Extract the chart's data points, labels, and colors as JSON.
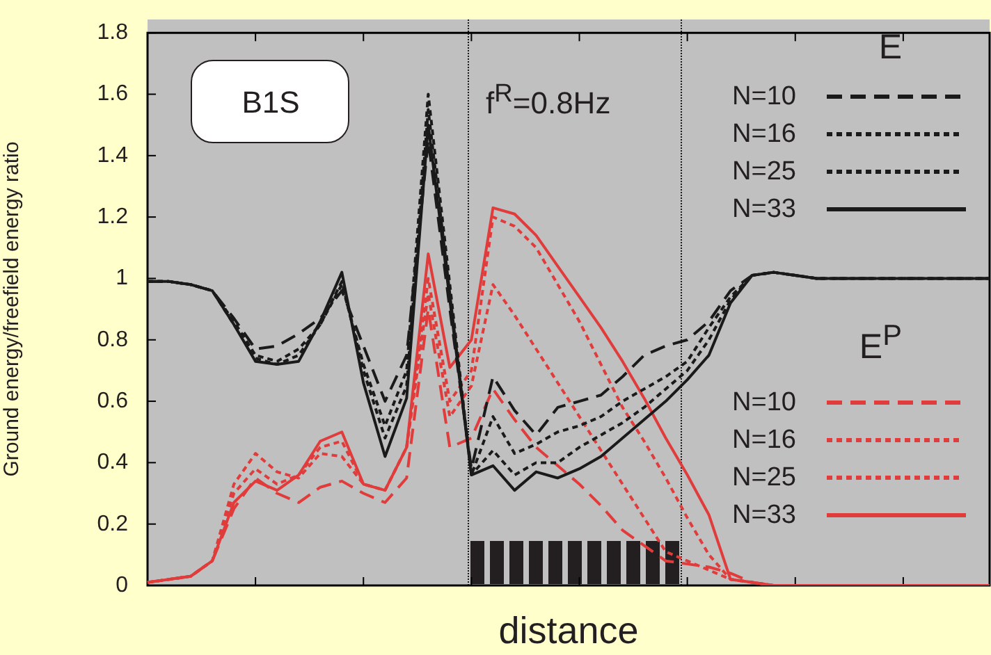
{
  "chart_data": {
    "type": "line",
    "xlabel": "distance",
    "ylabel": "Ground energy/freefield energy ratio",
    "annotations": [
      "B1S",
      "f$^{R}$=0.8Hz",
      "E",
      "E$^{P}$"
    ],
    "categories": [
      null,
      null,
      null,
      null,
      null,
      null,
      null,
      null,
      null,
      null,
      null,
      null,
      null,
      null,
      null,
      null,
      null,
      null,
      null,
      null,
      null,
      null,
      null,
      null,
      null,
      null,
      null,
      null,
      null,
      null,
      null,
      null,
      null,
      null,
      null,
      null,
      null,
      null,
      null,
      null
    ],
    "ylim": [
      0,
      1.8
    ],
    "yticks": [
      0,
      0.2,
      0.4,
      0.6,
      0.8,
      1,
      1.2,
      1.4,
      1.6,
      1.8
    ],
    "tick_labels": "y",
    "grid": false,
    "legend": "right",
    "marker": "none",
    "series": [
      {
        "name": "N=10",
        "color": "#1a1a1a",
        "line_style": "dashed",
        "values": [
          0.99,
          0.99,
          0.98,
          0.96,
          0.87,
          0.77,
          0.78,
          0.82,
          0.87,
          0.96,
          0.78,
          0.6,
          0.75,
          1.45,
          0.9,
          0.38,
          0.68,
          0.57,
          0.49,
          0.58,
          0.6,
          0.62,
          0.68,
          0.75,
          0.78,
          0.8,
          0.86,
          0.96,
          1.01,
          1.02,
          1.01,
          1.0,
          1.0,
          1.0,
          1.0,
          1.0,
          1.0,
          1.0,
          1.0,
          1.0
        ]
      },
      {
        "name": "N=16",
        "color": "#1a1a1a",
        "line_style": "dotted",
        "values": [
          0.99,
          0.99,
          0.98,
          0.96,
          0.86,
          0.75,
          0.73,
          0.77,
          0.85,
          0.98,
          0.72,
          0.52,
          0.7,
          1.6,
          0.98,
          0.36,
          0.55,
          0.43,
          0.46,
          0.5,
          0.52,
          0.55,
          0.6,
          0.64,
          0.68,
          0.73,
          0.84,
          0.94,
          1.01,
          1.02,
          1.01,
          1.0,
          1.0,
          1.0,
          1.0,
          1.0,
          1.0,
          1.0,
          1.0,
          1.0
        ]
      },
      {
        "name": "N=25",
        "color": "#1a1a1a",
        "line_style": "dotted",
        "values": [
          0.99,
          0.99,
          0.98,
          0.96,
          0.85,
          0.74,
          0.72,
          0.75,
          0.85,
          0.99,
          0.7,
          0.48,
          0.65,
          1.55,
          0.95,
          0.36,
          0.44,
          0.36,
          0.4,
          0.4,
          0.45,
          0.49,
          0.53,
          0.58,
          0.64,
          0.7,
          0.8,
          0.93,
          1.01,
          1.02,
          1.01,
          1.0,
          1.0,
          1.0,
          1.0,
          1.0,
          1.0,
          1.0,
          1.0,
          1.0
        ]
      },
      {
        "name": "N=33",
        "color": "#1a1a1a",
        "line_style": "solid",
        "values": [
          0.99,
          0.99,
          0.98,
          0.96,
          0.85,
          0.73,
          0.72,
          0.73,
          0.86,
          1.02,
          0.66,
          0.42,
          0.61,
          1.5,
          0.93,
          0.36,
          0.39,
          0.31,
          0.37,
          0.35,
          0.38,
          0.42,
          0.48,
          0.54,
          0.6,
          0.67,
          0.75,
          0.92,
          1.01,
          1.02,
          1.01,
          1.0,
          1.0,
          1.0,
          1.0,
          1.0,
          1.0,
          1.0,
          1.0,
          1.0
        ]
      },
      {
        "name": "N=10",
        "color": "#e03c3c",
        "line_style": "dashed",
        "values": [
          0.01,
          0.02,
          0.03,
          0.08,
          0.25,
          0.35,
          0.3,
          0.27,
          0.32,
          0.34,
          0.3,
          0.27,
          0.35,
          0.9,
          0.45,
          0.48,
          0.64,
          0.54,
          0.45,
          0.39,
          0.33,
          0.26,
          0.18,
          0.13,
          0.08,
          0.07,
          0.06,
          0.04,
          0.01,
          0,
          null,
          null,
          null,
          null,
          null,
          null,
          null,
          null,
          null,
          null
        ]
      },
      {
        "name": "N=16",
        "color": "#e03c3c",
        "line_style": "dotted",
        "values": [
          0.01,
          0.02,
          0.03,
          0.08,
          0.33,
          0.43,
          0.37,
          0.35,
          0.43,
          0.42,
          0.33,
          0.31,
          0.45,
          0.95,
          0.55,
          0.65,
          0.98,
          0.88,
          0.77,
          0.66,
          0.55,
          0.44,
          0.33,
          0.22,
          0.11,
          0.08,
          0.05,
          0.02,
          0.01,
          0,
          null,
          null,
          null,
          null,
          null,
          null,
          null,
          null,
          null,
          null
        ]
      },
      {
        "name": "N=25",
        "color": "#e03c3c",
        "line_style": "dotted",
        "values": [
          0.01,
          0.02,
          0.03,
          0.08,
          0.3,
          0.38,
          0.33,
          0.36,
          0.45,
          0.47,
          0.33,
          0.31,
          0.45,
          1.0,
          0.6,
          0.7,
          1.2,
          1.17,
          1.1,
          0.98,
          0.86,
          0.72,
          0.58,
          0.47,
          0.35,
          0.22,
          0.1,
          0.02,
          0.01,
          0,
          0,
          null,
          null,
          null,
          null,
          null,
          null,
          null,
          null,
          null
        ]
      },
      {
        "name": "N=33",
        "color": "#e03c3c",
        "line_style": "solid",
        "values": [
          0.01,
          0.02,
          0.03,
          0.08,
          0.27,
          0.34,
          0.31,
          0.36,
          0.47,
          0.5,
          0.33,
          0.31,
          0.45,
          1.08,
          0.71,
          0.8,
          1.23,
          1.21,
          1.14,
          1.04,
          0.94,
          0.84,
          0.73,
          0.61,
          0.48,
          0.36,
          0.23,
          0.02,
          0.01,
          0,
          0,
          0,
          0,
          0,
          0,
          0,
          0,
          0,
          0,
          0
        ]
      }
    ]
  }
}
